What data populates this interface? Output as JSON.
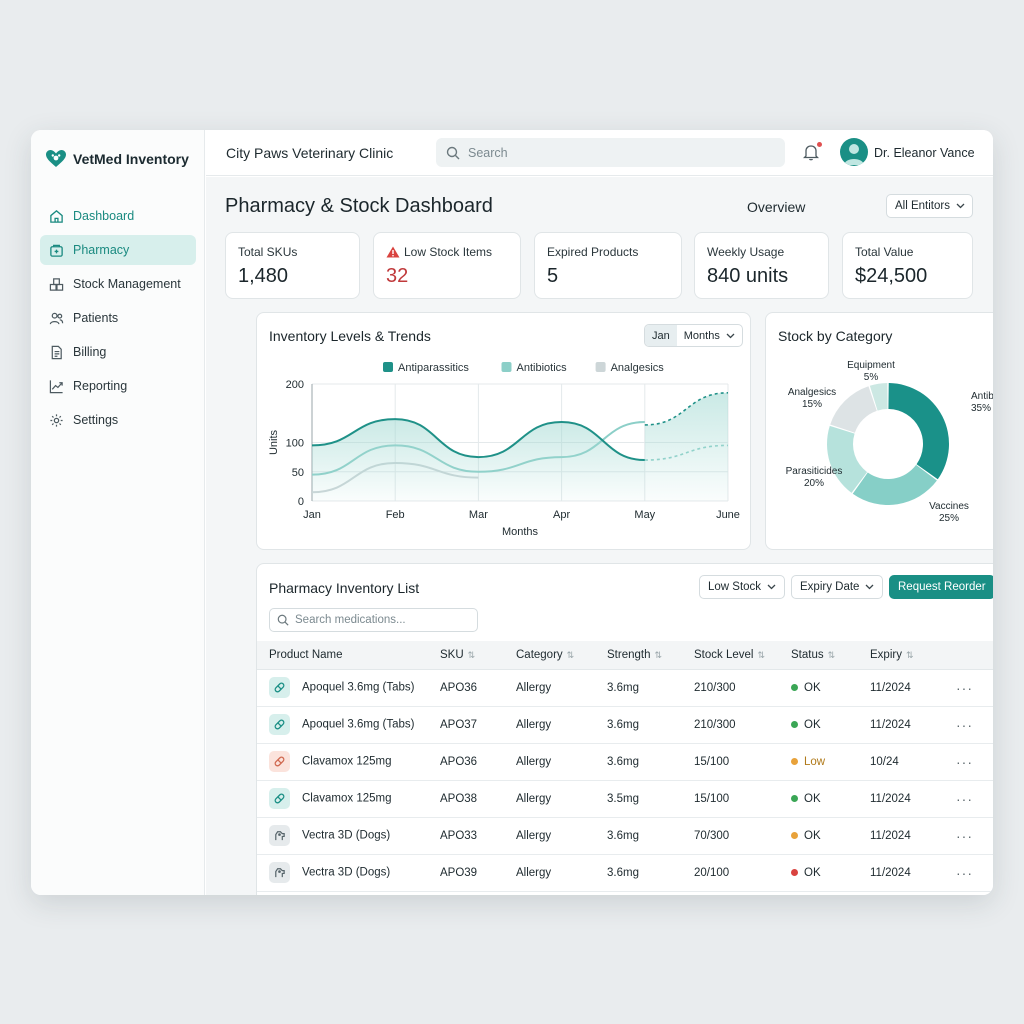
{
  "app": {
    "brand": "VetMed Inventory",
    "clinic": "City Paws Veterinary Clinic",
    "search_placeholder": "Search",
    "user_name": "Dr. Eleanor Vance"
  },
  "sidebar": {
    "items": [
      {
        "label": "Dashboard",
        "icon": "home-icon"
      },
      {
        "label": "Pharmacy",
        "icon": "pharmacy-icon"
      },
      {
        "label": "Stock Management",
        "icon": "boxes-icon"
      },
      {
        "label": "Patients",
        "icon": "users-icon"
      },
      {
        "label": "Billing",
        "icon": "document-icon"
      },
      {
        "label": "Reporting",
        "icon": "trend-icon"
      },
      {
        "label": "Settings",
        "icon": "gear-icon"
      }
    ]
  },
  "header": {
    "title": "Pharmacy & Stock Dashboard",
    "overview": "Overview",
    "filter": "All Entitors"
  },
  "stats": [
    {
      "label": "Total SKUs",
      "value": "1,480"
    },
    {
      "label": "Low Stock Items",
      "value": "32"
    },
    {
      "label": "Expired Products",
      "value": "5"
    },
    {
      "label": "Weekly Usage",
      "value": "840 units"
    },
    {
      "label": "Total Value",
      "value": "$24,500"
    }
  ],
  "trend_card": {
    "title": "Inventory Levels & Trends",
    "seg_left": "Jan",
    "seg_right": "Months"
  },
  "category_card": {
    "title": "Stock by Category"
  },
  "chart_data": [
    {
      "type": "line",
      "title": "Inventory Levels & Trends",
      "xlabel": "Months",
      "ylabel": "Units",
      "categories": [
        "Jan",
        "Feb",
        "Mar",
        "Apr",
        "May",
        "June"
      ],
      "yticks": [
        0,
        50,
        100,
        200
      ],
      "ylim": [
        0,
        200
      ],
      "legend_position": "top",
      "series": [
        {
          "name": "Antiparassitics",
          "color": "#1f9188",
          "values": [
            95,
            140,
            75,
            135,
            70,
            null
          ],
          "projected": [
            null,
            null,
            null,
            null,
            130,
            185
          ]
        },
        {
          "name": "Antibiotics",
          "color": "#8ccfc8",
          "values": [
            45,
            95,
            50,
            75,
            135,
            null
          ],
          "projected": [
            null,
            null,
            null,
            null,
            70,
            95
          ]
        },
        {
          "name": "Analgesics",
          "color": "#cdd6d8",
          "values": [
            15,
            65,
            40,
            null,
            null,
            null
          ],
          "projected": null
        }
      ]
    },
    {
      "type": "pie",
      "title": "Stock by Category",
      "slices": [
        {
          "label": "Antibiotics",
          "value": 35,
          "color": "#1a9189"
        },
        {
          "label": "Vaccines",
          "value": 25,
          "color": "#86cfc7"
        },
        {
          "label": "Parasiticides",
          "value": 20,
          "color": "#b6e2dc"
        },
        {
          "label": "Analgesics",
          "value": 15,
          "color": "#dde3e5"
        },
        {
          "label": "Equipment",
          "value": 5,
          "color": "#cce8e3"
        }
      ]
    }
  ],
  "inventory": {
    "title": "Pharmacy Inventory List",
    "filter_low": "Low Stock",
    "filter_expiry": "Expiry Date",
    "reorder": "Request Reorder",
    "search_placeholder": "Search medications...",
    "columns": [
      "Product Name",
      "SKU",
      "Category",
      "Strength",
      "Stock Level",
      "Status",
      "Expiry"
    ],
    "rows": [
      {
        "name": "Apoquel 3.6mg (Tabs)",
        "sku": "APO36",
        "category": "Allergy",
        "strength": "3.6mg",
        "stock": "210/300",
        "status": "OK",
        "status_color": "#3aa655",
        "expiry": "11/2024",
        "icon_bg": "#d7efec",
        "icon_color": "#1a8f85",
        "icon": "pill-icon"
      },
      {
        "name": "Apoquel 3.6mg (Tabs)",
        "sku": "APO37",
        "category": "Allergy",
        "strength": "3.6mg",
        "stock": "210/300",
        "status": "OK",
        "status_color": "#3aa655",
        "expiry": "11/2024",
        "icon_bg": "#d7efec",
        "icon_color": "#1a8f85",
        "icon": "pill-icon"
      },
      {
        "name": "Clavamox 125mg",
        "sku": "APO36",
        "category": "Allergy",
        "strength": "3.6mg",
        "stock": "15/100",
        "status": "Low",
        "status_color": "#e8a23a",
        "expiry": "10/24",
        "icon_bg": "#fbe3dc",
        "icon_color": "#d0684f",
        "icon": "pill-icon"
      },
      {
        "name": "Clavamox 125mg",
        "sku": "APO38",
        "category": "Allergy",
        "strength": "3.5mg",
        "stock": "15/100",
        "status": "OK",
        "status_color": "#3aa655",
        "expiry": "11/2024",
        "icon_bg": "#d7efec",
        "icon_color": "#1a8f85",
        "icon": "pill-icon"
      },
      {
        "name": "Vectra 3D (Dogs)",
        "sku": "APO33",
        "category": "Allergy",
        "strength": "3.6mg",
        "stock": "70/300",
        "status": "OK",
        "status_color": "#e8a23a",
        "expiry": "11/2024",
        "icon_bg": "#e6eaec",
        "icon_color": "#56646a",
        "icon": "dog-icon"
      },
      {
        "name": "Vectra 3D (Dogs)",
        "sku": "APO39",
        "category": "Allergy",
        "strength": "3.6mg",
        "stock": "20/100",
        "status": "OK",
        "status_color": "#d9433f",
        "expiry": "11/2024",
        "icon_bg": "#e6eaec",
        "icon_color": "#56646a",
        "icon": "dog-icon"
      }
    ]
  }
}
